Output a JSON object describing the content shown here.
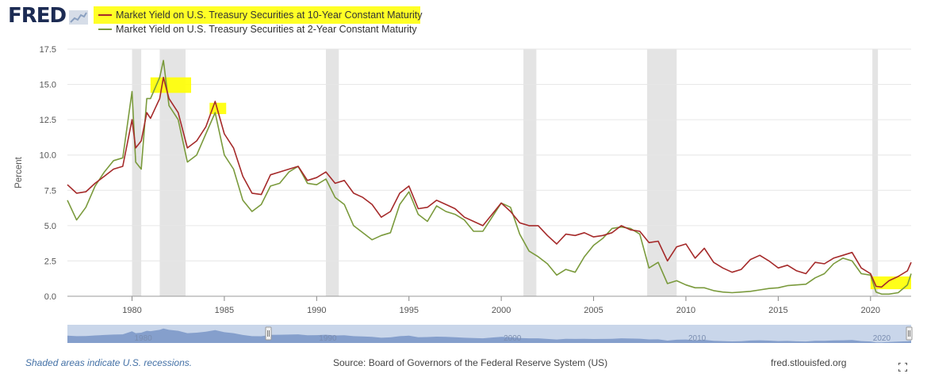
{
  "logo": {
    "text": "FRED"
  },
  "legend": [
    {
      "label": "Market Yield on U.S. Treasury Securities at 10-Year Constant Maturity",
      "color": "#a52a2a"
    },
    {
      "label": "Market Yield on U.S. Treasury Securities at 2-Year Constant Maturity",
      "color": "#7a9a3c"
    }
  ],
  "footer": {
    "recession_note": "Shaded areas indicate U.S. recessions.",
    "source": "Source: Board of Governors of the Federal Reserve System (US)",
    "site": "fred.stlouisfed.org"
  },
  "colors": {
    "recession": "#e4e4e4",
    "highlight": "#ffff00",
    "navigator_fill": "#6d8cc2",
    "navigator_bg": "#c9d6ea"
  },
  "chart_data": {
    "type": "line",
    "xlabel": "",
    "ylabel": "Percent",
    "xlim": [
      1976.5,
      2022.2
    ],
    "ylim": [
      0,
      17.5
    ],
    "yticks": [
      "0.0",
      "2.5",
      "5.0",
      "7.5",
      "10.0",
      "12.5",
      "15.0",
      "17.5"
    ],
    "xticks": [
      "1980",
      "1985",
      "1990",
      "1995",
      "2000",
      "2005",
      "2010",
      "2015",
      "2020"
    ],
    "grid": true,
    "recessions": [
      [
        1980.0,
        1980.5
      ],
      [
        1981.5,
        1982.9
      ],
      [
        1990.5,
        1991.2
      ],
      [
        2001.2,
        2001.9
      ],
      [
        2007.9,
        2009.5
      ],
      [
        2020.1,
        2020.4
      ]
    ],
    "highlights": [
      [
        1981.0,
        1983.2,
        15.5,
        14.4
      ],
      [
        1984.2,
        1985.1,
        13.7,
        12.9
      ],
      [
        2020.0,
        2022.2,
        1.4,
        0.5
      ]
    ],
    "navigator": {
      "ticks": [
        "1980",
        "1990",
        "2000",
        "2010",
        "2020"
      ],
      "range": [
        1976.5,
        2022.2
      ]
    },
    "series": [
      {
        "name": "10-Year",
        "color": "#a52a2a",
        "x": [
          1976.5,
          1977,
          1977.5,
          1978,
          1978.5,
          1979,
          1979.5,
          1980,
          1980.2,
          1980.5,
          1980.8,
          1981,
          1981.5,
          1981.7,
          1982,
          1982.5,
          1983,
          1983.5,
          1984,
          1984.5,
          1985,
          1985.5,
          1986,
          1986.5,
          1987,
          1987.5,
          1988,
          1988.5,
          1989,
          1989.5,
          1990,
          1990.5,
          1991,
          1991.5,
          1992,
          1992.5,
          1993,
          1993.5,
          1994,
          1994.5,
          1995,
          1995.5,
          1996,
          1996.5,
          1997,
          1997.5,
          1998,
          1998.5,
          1999,
          1999.5,
          2000,
          2000.5,
          2001,
          2001.5,
          2002,
          2002.5,
          2003,
          2003.5,
          2004,
          2004.5,
          2005,
          2005.5,
          2006,
          2006.5,
          2007,
          2007.5,
          2008,
          2008.5,
          2009,
          2009.5,
          2010,
          2010.5,
          2011,
          2011.5,
          2012,
          2012.5,
          2013,
          2013.5,
          2014,
          2014.5,
          2015,
          2015.5,
          2016,
          2016.5,
          2017,
          2017.5,
          2018,
          2018.5,
          2019,
          2019.5,
          2020,
          2020.3,
          2020.6,
          2021,
          2021.5,
          2022,
          2022.2
        ],
        "values": [
          7.9,
          7.3,
          7.4,
          8.0,
          8.5,
          9.0,
          9.2,
          12.5,
          10.5,
          11.0,
          13.0,
          12.6,
          14.0,
          15.5,
          14.0,
          13.0,
          10.5,
          11.0,
          12.0,
          13.8,
          11.5,
          10.5,
          8.5,
          7.3,
          7.2,
          8.6,
          8.8,
          9.0,
          9.2,
          8.2,
          8.4,
          8.8,
          8.0,
          8.2,
          7.3,
          7.0,
          6.5,
          5.6,
          6.0,
          7.3,
          7.8,
          6.2,
          6.3,
          6.8,
          6.5,
          6.2,
          5.6,
          5.3,
          5.0,
          5.8,
          6.6,
          6.0,
          5.2,
          5.0,
          5.0,
          4.3,
          3.7,
          4.4,
          4.3,
          4.5,
          4.2,
          4.3,
          4.5,
          5.0,
          4.7,
          4.6,
          3.8,
          3.9,
          2.5,
          3.5,
          3.7,
          2.7,
          3.4,
          2.4,
          2.0,
          1.7,
          1.9,
          2.6,
          2.9,
          2.5,
          2.0,
          2.2,
          1.8,
          1.6,
          2.4,
          2.3,
          2.7,
          2.9,
          3.1,
          2.0,
          1.6,
          0.7,
          0.65,
          1.1,
          1.4,
          1.8,
          2.4
        ]
      },
      {
        "name": "2-Year",
        "color": "#7a9a3c",
        "x": [
          1976.5,
          1977,
          1977.5,
          1978,
          1978.5,
          1979,
          1979.5,
          1980,
          1980.2,
          1980.5,
          1980.8,
          1981,
          1981.5,
          1981.7,
          1982,
          1982.5,
          1983,
          1983.5,
          1984,
          1984.5,
          1985,
          1985.5,
          1986,
          1986.5,
          1987,
          1987.5,
          1988,
          1988.5,
          1989,
          1989.5,
          1990,
          1990.5,
          1991,
          1991.5,
          1992,
          1992.5,
          1993,
          1993.5,
          1994,
          1994.5,
          1995,
          1995.5,
          1996,
          1996.5,
          1997,
          1997.5,
          1998,
          1998.5,
          1999,
          1999.5,
          2000,
          2000.5,
          2001,
          2001.5,
          2002,
          2002.5,
          2003,
          2003.5,
          2004,
          2004.5,
          2005,
          2005.5,
          2006,
          2006.5,
          2007,
          2007.5,
          2008,
          2008.5,
          2009,
          2009.5,
          2010,
          2010.5,
          2011,
          2011.5,
          2012,
          2012.5,
          2013,
          2013.5,
          2014,
          2014.5,
          2015,
          2015.5,
          2016,
          2016.5,
          2017,
          2017.5,
          2018,
          2018.5,
          2019,
          2019.5,
          2020,
          2020.3,
          2020.6,
          2021,
          2021.5,
          2022,
          2022.2
        ],
        "values": [
          6.8,
          5.4,
          6.3,
          7.8,
          8.8,
          9.6,
          9.8,
          14.5,
          9.5,
          9.0,
          14.0,
          14.0,
          15.5,
          16.7,
          13.5,
          12.5,
          9.5,
          10.0,
          11.5,
          13.0,
          10.0,
          9.0,
          6.8,
          6.0,
          6.5,
          7.8,
          8.0,
          8.8,
          9.2,
          8.0,
          7.9,
          8.3,
          7.0,
          6.5,
          5.0,
          4.5,
          4.0,
          4.3,
          4.5,
          6.5,
          7.4,
          5.8,
          5.3,
          6.4,
          6.0,
          5.8,
          5.4,
          4.6,
          4.6,
          5.6,
          6.6,
          6.3,
          4.4,
          3.2,
          2.8,
          2.3,
          1.5,
          1.9,
          1.7,
          2.8,
          3.6,
          4.1,
          4.8,
          4.9,
          4.8,
          4.4,
          2.0,
          2.4,
          0.9,
          1.1,
          0.8,
          0.6,
          0.6,
          0.4,
          0.3,
          0.25,
          0.3,
          0.35,
          0.45,
          0.55,
          0.6,
          0.75,
          0.8,
          0.85,
          1.3,
          1.6,
          2.3,
          2.7,
          2.5,
          1.6,
          1.5,
          0.3,
          0.15,
          0.15,
          0.25,
          0.8,
          1.6
        ]
      }
    ]
  }
}
